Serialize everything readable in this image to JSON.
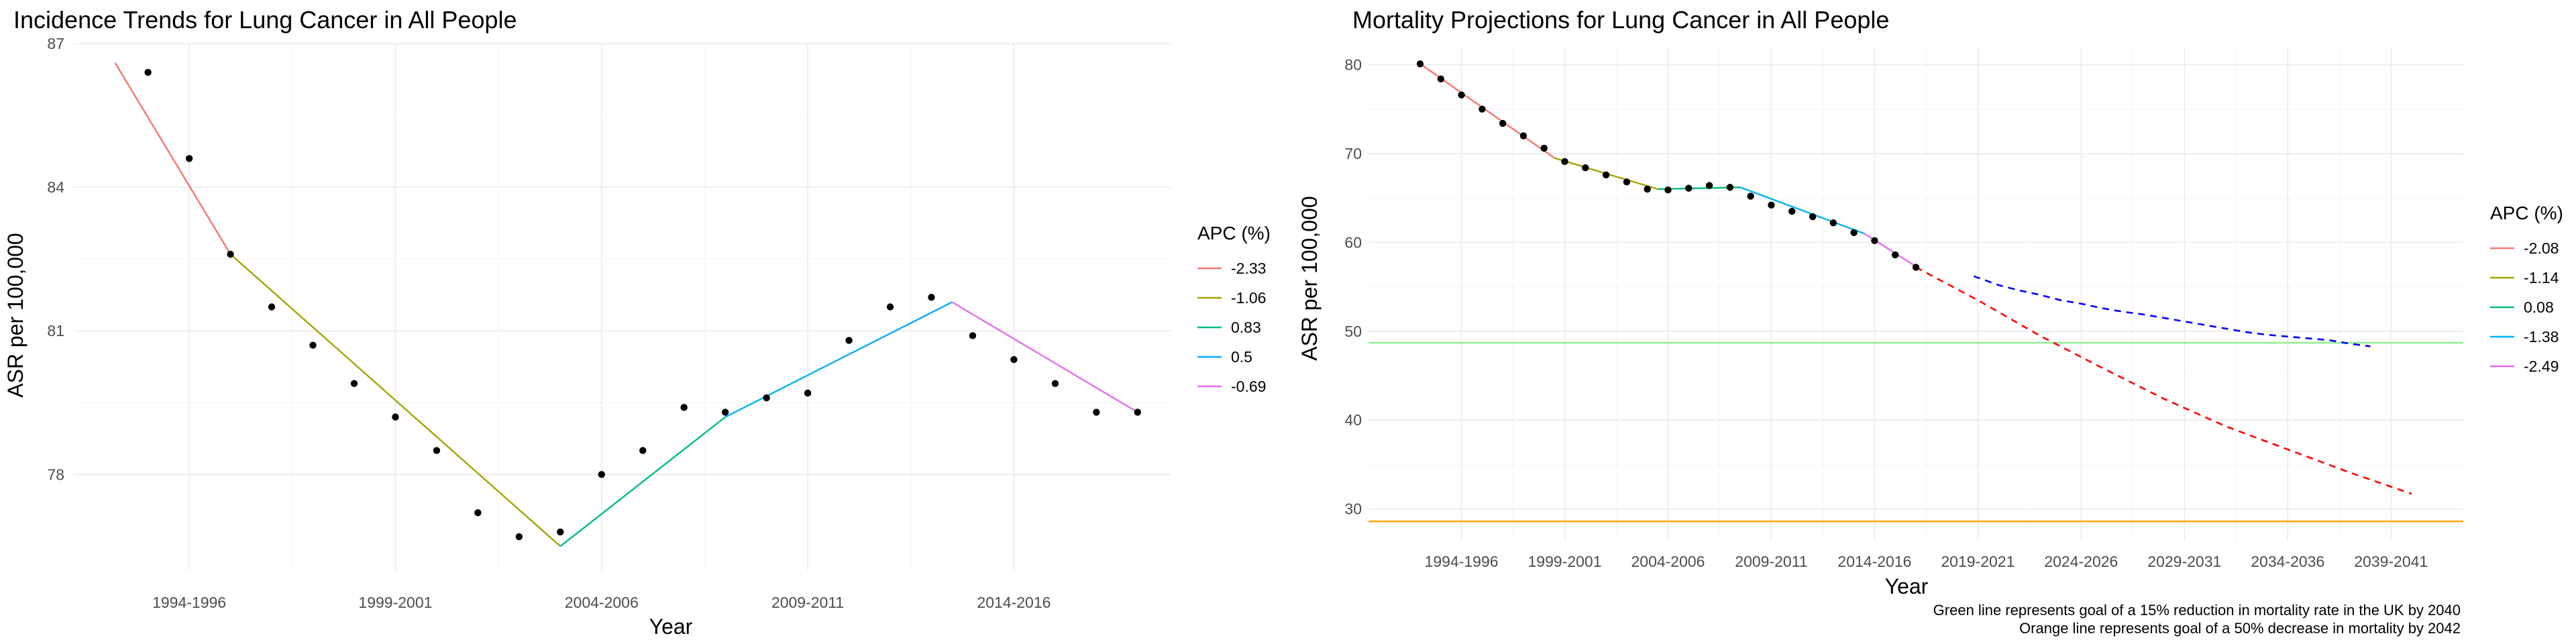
{
  "chart_data": [
    {
      "type": "line",
      "title": "Incidence Trends for Lung Cancer in All People",
      "xlabel": "Year",
      "ylabel": "ASR per 100,000",
      "x_ticks": [
        "1994-1996",
        "1999-2001",
        "2004-2006",
        "2009-2011",
        "2014-2016"
      ],
      "x_tick_positions": [
        1995,
        2000,
        2005,
        2010,
        2015
      ],
      "xlim": [
        1992.2,
        2018.8
      ],
      "y_ticks": [
        78,
        81,
        84,
        87
      ],
      "ylim": [
        76.0,
        87.0
      ],
      "grid": true,
      "legend": {
        "title": "APC (%)",
        "placement": "right",
        "entries": [
          {
            "label": "-2.33",
            "color": "#F8766D"
          },
          {
            "label": "-1.06",
            "color": "#A3A500"
          },
          {
            "label": "0.83",
            "color": "#00BF7D"
          },
          {
            "label": "0.5",
            "color": "#00B0F6"
          },
          {
            "label": "-0.69",
            "color": "#E76BF3"
          }
        ]
      },
      "points": {
        "x": [
          1994,
          1995,
          1996,
          1997,
          1998,
          1999,
          2000,
          2001,
          2002,
          2003,
          2004,
          2005,
          2006,
          2007,
          2008,
          2009,
          2010,
          2011,
          2012,
          2013,
          2014,
          2015,
          2016,
          2017,
          2018
        ],
        "y": [
          86.4,
          84.6,
          82.6,
          81.5,
          80.7,
          79.9,
          79.2,
          78.5,
          77.2,
          76.7,
          76.8,
          78.0,
          78.5,
          79.4,
          79.3,
          79.6,
          79.7,
          80.8,
          81.5,
          81.7,
          80.9,
          80.4,
          79.9,
          79.3,
          79.3
        ],
        "color": "#000000"
      },
      "series": [
        {
          "name": "-2.33",
          "color": "#F8766D",
          "x": [
            1993.2,
            1996.0
          ],
          "y": [
            86.6,
            82.6
          ]
        },
        {
          "name": "-1.06",
          "color": "#A3A500",
          "x": [
            1996.0,
            2004.0
          ],
          "y": [
            82.6,
            76.5
          ]
        },
        {
          "name": "0.83",
          "color": "#00BF7D",
          "x": [
            2004.0,
            2008.0
          ],
          "y": [
            76.5,
            79.2
          ]
        },
        {
          "name": "0.5",
          "color": "#00B0F6",
          "x": [
            2008.0,
            2013.5
          ],
          "y": [
            79.2,
            81.6
          ]
        },
        {
          "name": "-0.69",
          "color": "#E76BF3",
          "x": [
            2013.5,
            2018.0
          ],
          "y": [
            81.6,
            79.3
          ]
        }
      ]
    },
    {
      "type": "line",
      "title": "Mortality Projections for Lung Cancer in All People",
      "xlabel": "Year",
      "ylabel": "ASR per 100,000",
      "x_ticks": [
        "1994-1996",
        "1999-2001",
        "2004-2006",
        "2009-2011",
        "2014-2016",
        "2019-2021",
        "2024-2026",
        "2029-2031",
        "2034-2036",
        "2039-2041"
      ],
      "x_tick_positions": [
        1995,
        2000,
        2005,
        2010,
        2015,
        2020,
        2025,
        2030,
        2035,
        2040
      ],
      "xlim": [
        1990.5,
        2043.5
      ],
      "y_ticks": [
        30,
        40,
        50,
        60,
        70,
        80
      ],
      "ylim": [
        26.5,
        82.0
      ],
      "grid": true,
      "legend": {
        "title": "APC (%)",
        "placement": "right",
        "entries": [
          {
            "label": "-2.08",
            "color": "#F8766D"
          },
          {
            "label": "-1.14",
            "color": "#A3A500"
          },
          {
            "label": "0.08",
            "color": "#00BF7D"
          },
          {
            "label": "-1.38",
            "color": "#00B0F6"
          },
          {
            "label": "-2.49",
            "color": "#E76BF3"
          }
        ]
      },
      "points": {
        "x": [
          1993,
          1994,
          1995,
          1996,
          1997,
          1998,
          1999,
          2000,
          2001,
          2002,
          2003,
          2004,
          2005,
          2006,
          2007,
          2008,
          2009,
          2010,
          2011,
          2012,
          2013,
          2014,
          2015,
          2016,
          2017
        ],
        "y": [
          80.1,
          78.4,
          76.6,
          75.0,
          73.4,
          72.0,
          70.6,
          69.1,
          68.4,
          67.6,
          66.8,
          66.0,
          65.9,
          66.1,
          66.4,
          66.2,
          65.2,
          64.2,
          63.5,
          62.9,
          62.2,
          61.1,
          60.2,
          58.6,
          57.2
        ],
        "color": "#000000"
      },
      "series": [
        {
          "name": "-2.08",
          "color": "#F8766D",
          "x": [
            1993,
            1999.5
          ],
          "y": [
            80.1,
            69.5
          ]
        },
        {
          "name": "-1.14",
          "color": "#A3A500",
          "x": [
            1999.5,
            2004.5
          ],
          "y": [
            69.5,
            66.0
          ]
        },
        {
          "name": "0.08",
          "color": "#00BF7D",
          "x": [
            2004.5,
            2008.5
          ],
          "y": [
            66.0,
            66.2
          ]
        },
        {
          "name": "-1.38",
          "color": "#00B0F6",
          "x": [
            2008.5,
            2014.5
          ],
          "y": [
            66.2,
            61.0
          ]
        },
        {
          "name": "-2.49",
          "color": "#E76BF3",
          "x": [
            2014.5,
            2017.0
          ],
          "y": [
            61.0,
            57.3
          ]
        }
      ],
      "projections": [
        {
          "color": "#FF0000",
          "style": "dashed",
          "x": [
            2017,
            2020,
            2023,
            2026,
            2029,
            2032,
            2035,
            2038,
            2041
          ],
          "y": [
            57.2,
            53.5,
            49.5,
            45.9,
            42.4,
            39.3,
            36.7,
            34.1,
            31.7
          ]
        },
        {
          "color": "#0000FF",
          "style": "dashed",
          "x": [
            2019.8,
            2021,
            2022,
            2023,
            2024,
            2025,
            2026,
            2027,
            2028,
            2029,
            2030,
            2031,
            2032,
            2033,
            2034,
            2035,
            2036,
            2037,
            2038,
            2039
          ],
          "y": [
            56.2,
            55.2,
            54.6,
            54.1,
            53.5,
            53.1,
            52.6,
            52.2,
            51.9,
            51.5,
            51.1,
            50.7,
            50.3,
            49.9,
            49.6,
            49.4,
            49.2,
            49.0,
            48.6,
            48.3
          ]
        }
      ],
      "reference_lines": [
        {
          "y": 48.7,
          "color": "#90EE90"
        },
        {
          "y": 28.6,
          "color": "#FFA500"
        }
      ],
      "notes": [
        "Green line represents goal of a 15% reduction in mortality rate in the UK by 2040",
        "Orange line represents goal of a 50% decrease in mortality by 2042"
      ]
    }
  ]
}
